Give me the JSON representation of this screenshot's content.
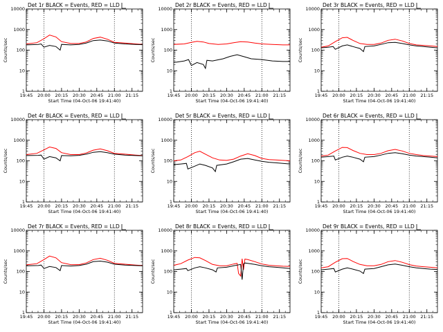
{
  "chart_data": [
    {
      "type": "line",
      "title": "Det 1r BLACK = Events, RED = LLD",
      "xlabel": "Start Time (04-Oct-06 19:41:40)",
      "ylabel": "Counts/sec",
      "yscale": "log",
      "ylim": [
        1,
        10000
      ],
      "yticks": [
        "1",
        "10",
        "100",
        "1000",
        "10000"
      ],
      "xlim": [
        19.75,
        21.4
      ],
      "xticks": [
        "19:45",
        "20:00",
        "20:15",
        "20:30",
        "20:45",
        "21:00",
        "21:15"
      ],
      "vlines": [
        20.0,
        21.0
      ],
      "series": [
        {
          "name": "RED",
          "color": "#ff0000",
          "x": [
            19.75,
            19.9,
            20.0,
            20.08,
            20.17,
            20.25,
            20.38,
            20.5,
            20.6,
            20.7,
            20.8,
            20.9,
            21.0,
            21.15,
            21.3,
            21.4
          ],
          "y": [
            200,
            230,
            360,
            540,
            440,
            260,
            210,
            210,
            250,
            370,
            430,
            340,
            240,
            220,
            200,
            190
          ]
        },
        {
          "name": "BLACK",
          "color": "#000000",
          "x": [
            19.75,
            19.92,
            19.96,
            20.0,
            20.08,
            20.17,
            20.23,
            20.25,
            20.38,
            20.5,
            20.6,
            20.7,
            20.8,
            20.9,
            21.0,
            21.15,
            21.3,
            21.4
          ],
          "y": [
            180,
            190,
            200,
            140,
            170,
            150,
            100,
            190,
            180,
            190,
            220,
            290,
            310,
            280,
            220,
            200,
            190,
            185
          ]
        }
      ]
    },
    {
      "type": "line",
      "title": "Det 2r BLACK = Events, RED = LLD",
      "xlabel": "Start Time (04-Oct-06 19:41:40)",
      "ylabel": "Counts/sec",
      "yscale": "log",
      "ylim": [
        1,
        10000
      ],
      "yticks": [
        "1",
        "10",
        "100",
        "1000",
        "10000"
      ],
      "xlim": [
        19.75,
        21.4
      ],
      "xticks": [
        "19:45",
        "20:00",
        "20:15",
        "20:30",
        "20:45",
        "21:00",
        "21:15"
      ],
      "vlines": [
        20.0,
        21.0
      ],
      "series": [
        {
          "name": "RED",
          "color": "#ff0000",
          "x": [
            19.75,
            19.9,
            20.0,
            20.08,
            20.17,
            20.25,
            20.38,
            20.5,
            20.6,
            20.7,
            20.8,
            20.9,
            21.0,
            21.15,
            21.3,
            21.4
          ],
          "y": [
            190,
            200,
            240,
            270,
            250,
            210,
            190,
            200,
            230,
            260,
            250,
            220,
            200,
            190,
            180,
            180
          ]
        },
        {
          "name": "BLACK",
          "color": "#000000",
          "x": [
            19.75,
            19.9,
            19.96,
            20.0,
            20.08,
            20.17,
            20.2,
            20.22,
            20.3,
            20.45,
            20.55,
            20.65,
            20.75,
            20.85,
            21.0,
            21.15,
            21.3,
            21.4
          ],
          "y": [
            25,
            30,
            35,
            18,
            25,
            20,
            13,
            32,
            30,
            38,
            50,
            60,
            48,
            38,
            35,
            30,
            28,
            28
          ]
        }
      ]
    },
    {
      "type": "line",
      "title": "Det 3r BLACK = Events, RED = LLD",
      "xlabel": "Start Time (04-Oct-06 19:41:40)",
      "ylabel": "Counts/sec",
      "yscale": "log",
      "ylim": [
        1,
        10000
      ],
      "yticks": [
        "1",
        "10",
        "100",
        "1000",
        "10000"
      ],
      "xlim": [
        19.75,
        21.4
      ],
      "xticks": [
        "19:45",
        "20:00",
        "20:15",
        "20:30",
        "20:45",
        "21:00",
        "21:15"
      ],
      "vlines": [
        20.0,
        21.0
      ],
      "series": [
        {
          "name": "RED",
          "color": "#ff0000",
          "x": [
            19.75,
            19.85,
            19.95,
            20.05,
            20.12,
            20.2,
            20.3,
            20.4,
            20.5,
            20.6,
            20.7,
            20.8,
            20.9,
            21.0,
            21.1,
            21.2,
            21.3,
            21.4
          ],
          "y": [
            140,
            160,
            260,
            400,
            420,
            300,
            210,
            190,
            190,
            220,
            300,
            340,
            280,
            210,
            180,
            170,
            160,
            150
          ]
        },
        {
          "name": "BLACK",
          "color": "#000000",
          "x": [
            19.75,
            19.85,
            19.92,
            19.95,
            20.05,
            20.12,
            20.2,
            20.3,
            20.35,
            20.37,
            20.5,
            20.6,
            20.7,
            20.8,
            20.9,
            21.0,
            21.1,
            21.2,
            21.3,
            21.4
          ],
          "y": [
            130,
            140,
            150,
            110,
            160,
            180,
            150,
            120,
            85,
            150,
            160,
            190,
            230,
            240,
            210,
            180,
            160,
            150,
            140,
            130
          ]
        }
      ]
    },
    {
      "type": "line",
      "title": "Det 4r BLACK = Events, RED = LLD",
      "xlabel": "Start Time (04-Oct-06 19:41:40)",
      "ylabel": "Counts/sec",
      "yscale": "log",
      "ylim": [
        1,
        10000
      ],
      "yticks": [
        "1",
        "10",
        "100",
        "1000",
        "10000"
      ],
      "xlim": [
        19.75,
        21.4
      ],
      "xticks": [
        "19:45",
        "20:00",
        "20:15",
        "20:30",
        "20:45",
        "21:00",
        "21:15"
      ],
      "vlines": [
        20.0,
        21.0
      ],
      "series": [
        {
          "name": "RED",
          "color": "#ff0000",
          "x": [
            19.75,
            19.9,
            20.0,
            20.08,
            20.17,
            20.25,
            20.38,
            20.5,
            20.6,
            20.7,
            20.8,
            20.9,
            21.0,
            21.15,
            21.3,
            21.4
          ],
          "y": [
            200,
            230,
            340,
            470,
            400,
            250,
            200,
            200,
            240,
            330,
            380,
            310,
            230,
            210,
            190,
            180
          ]
        },
        {
          "name": "BLACK",
          "color": "#000000",
          "x": [
            19.75,
            19.92,
            19.96,
            20.0,
            20.08,
            20.17,
            20.23,
            20.25,
            20.38,
            20.5,
            20.6,
            20.7,
            20.8,
            20.9,
            21.0,
            21.15,
            21.3,
            21.4
          ],
          "y": [
            180,
            185,
            190,
            120,
            160,
            140,
            100,
            180,
            175,
            185,
            210,
            260,
            280,
            250,
            210,
            190,
            180,
            175
          ]
        }
      ]
    },
    {
      "type": "line",
      "title": "Det 5r BLACK = Events, RED = LLD",
      "xlabel": "Start Time (04-Oct-06 19:41:40)",
      "ylabel": "Counts/sec",
      "yscale": "log",
      "ylim": [
        1,
        10000
      ],
      "yticks": [
        "1",
        "10",
        "100",
        "1000",
        "10000"
      ],
      "xlim": [
        19.75,
        21.4
      ],
      "xticks": [
        "19:45",
        "20:00",
        "20:15",
        "20:30",
        "20:45",
        "21:00",
        "21:15"
      ],
      "vlines": [
        20.0,
        21.0
      ],
      "series": [
        {
          "name": "RED",
          "color": "#ff0000",
          "x": [
            19.75,
            19.85,
            19.95,
            20.05,
            20.12,
            20.2,
            20.3,
            20.4,
            20.5,
            20.6,
            20.7,
            20.8,
            20.9,
            21.0,
            21.1,
            21.2,
            21.3,
            21.4
          ],
          "y": [
            100,
            110,
            160,
            250,
            290,
            210,
            140,
            110,
            105,
            120,
            170,
            220,
            180,
            130,
            115,
            110,
            105,
            100
          ]
        },
        {
          "name": "BLACK",
          "color": "#000000",
          "x": [
            19.75,
            19.85,
            19.93,
            19.95,
            20.05,
            20.12,
            20.2,
            20.3,
            20.34,
            20.36,
            20.5,
            20.6,
            20.7,
            20.8,
            20.9,
            21.0,
            21.1,
            21.2,
            21.3,
            21.4
          ],
          "y": [
            65,
            70,
            75,
            40,
            55,
            70,
            60,
            45,
            30,
            60,
            70,
            90,
            120,
            130,
            110,
            95,
            85,
            80,
            75,
            70
          ]
        }
      ]
    },
    {
      "type": "line",
      "title": "Det 6r BLACK = Events, RED = LLD",
      "xlabel": "Start Time (04-Oct-06 19:41:40)",
      "ylabel": "Counts/sec",
      "yscale": "log",
      "ylim": [
        1,
        10000
      ],
      "yticks": [
        "1",
        "10",
        "100",
        "1000",
        "10000"
      ],
      "xlim": [
        19.75,
        21.4
      ],
      "xticks": [
        "19:45",
        "20:00",
        "20:15",
        "20:30",
        "20:45",
        "21:00",
        "21:15"
      ],
      "vlines": [
        20.0,
        21.0
      ],
      "series": [
        {
          "name": "RED",
          "color": "#ff0000",
          "x": [
            19.75,
            19.85,
            19.95,
            20.05,
            20.12,
            20.2,
            20.3,
            20.4,
            20.5,
            20.6,
            20.7,
            20.8,
            20.9,
            21.0,
            21.1,
            21.2,
            21.3,
            21.4
          ],
          "y": [
            170,
            190,
            300,
            450,
            440,
            320,
            230,
            200,
            200,
            230,
            310,
            360,
            300,
            230,
            200,
            180,
            170,
            160
          ]
        },
        {
          "name": "BLACK",
          "color": "#000000",
          "x": [
            19.75,
            19.85,
            19.93,
            19.95,
            20.05,
            20.12,
            20.2,
            20.3,
            20.35,
            20.37,
            20.5,
            20.6,
            20.7,
            20.8,
            20.9,
            21.0,
            21.1,
            21.2,
            21.3,
            21.4
          ],
          "y": [
            150,
            160,
            170,
            110,
            150,
            170,
            150,
            120,
            90,
            150,
            160,
            190,
            230,
            250,
            220,
            190,
            170,
            160,
            150,
            140
          ]
        }
      ]
    },
    {
      "type": "line",
      "title": "Det 7r BLACK = Events, RED = LLD",
      "xlabel": "Start Time (04-Oct-06 19:41:40)",
      "ylabel": "Counts/sec",
      "yscale": "log",
      "ylim": [
        1,
        10000
      ],
      "yticks": [
        "1",
        "10",
        "100",
        "1000",
        "10000"
      ],
      "xlim": [
        19.75,
        21.4
      ],
      "xticks": [
        "19:45",
        "20:00",
        "20:15",
        "20:30",
        "20:45",
        "21:00",
        "21:15"
      ],
      "vlines": [
        20.0,
        21.0
      ],
      "series": [
        {
          "name": "RED",
          "color": "#ff0000",
          "x": [
            19.75,
            19.9,
            20.0,
            20.08,
            20.17,
            20.25,
            20.38,
            20.5,
            20.6,
            20.7,
            20.8,
            20.9,
            21.0,
            21.15,
            21.3,
            21.4
          ],
          "y": [
            210,
            240,
            380,
            560,
            460,
            270,
            215,
            215,
            260,
            380,
            440,
            350,
            250,
            225,
            205,
            195
          ]
        },
        {
          "name": "BLACK",
          "color": "#000000",
          "x": [
            19.75,
            19.92,
            19.96,
            20.0,
            20.08,
            20.17,
            20.23,
            20.25,
            20.38,
            20.5,
            20.6,
            20.7,
            20.8,
            20.9,
            21.0,
            21.15,
            21.3,
            21.4
          ],
          "y": [
            190,
            195,
            205,
            140,
            175,
            155,
            110,
            195,
            185,
            195,
            225,
            300,
            320,
            285,
            225,
            205,
            195,
            190
          ]
        }
      ]
    },
    {
      "type": "line",
      "title": "Det 8r BLACK = Events, RED = LLD",
      "xlabel": "Start Time (04-Oct-06 19:41:40)",
      "ylabel": "Counts/sec",
      "yscale": "log",
      "ylim": [
        1,
        10000
      ],
      "yticks": [
        "1",
        "10",
        "100",
        "1000",
        "10000"
      ],
      "xlim": [
        19.75,
        21.4
      ],
      "xticks": [
        "19:45",
        "20:00",
        "20:15",
        "20:30",
        "20:45",
        "21:00",
        "21:15"
      ],
      "vlines": [
        20.0,
        21.0
      ],
      "series": [
        {
          "name": "RED",
          "color": "#ff0000",
          "x": [
            19.75,
            19.85,
            19.95,
            20.05,
            20.12,
            20.2,
            20.3,
            20.4,
            20.5,
            20.6,
            20.65,
            20.67,
            20.7,
            20.72,
            20.74,
            20.76,
            20.8,
            20.9,
            21.0,
            21.1,
            21.2,
            21.3,
            21.4
          ],
          "y": [
            200,
            240,
            360,
            480,
            460,
            340,
            220,
            190,
            190,
            230,
            250,
            80,
            60,
            420,
            120,
            400,
            380,
            300,
            230,
            200,
            190,
            180,
            175
          ]
        },
        {
          "name": "BLACK",
          "color": "#000000",
          "x": [
            19.75,
            19.85,
            19.93,
            19.95,
            20.05,
            20.12,
            20.2,
            20.3,
            20.35,
            20.37,
            20.5,
            20.6,
            20.7,
            20.72,
            20.74,
            20.76,
            20.8,
            20.9,
            21.0,
            21.1,
            21.2,
            21.3,
            21.4
          ],
          "y": [
            120,
            130,
            140,
            110,
            150,
            170,
            150,
            120,
            95,
            150,
            160,
            190,
            220,
            40,
            230,
            260,
            250,
            220,
            190,
            170,
            160,
            150,
            140
          ]
        }
      ]
    },
    {
      "type": "line",
      "title": "Det 9r BLACK = Events, RED = LLD",
      "xlabel": "Start Time (04-Oct-06 19:41:40)",
      "ylabel": "Counts/sec",
      "yscale": "log",
      "ylim": [
        1,
        10000
      ],
      "yticks": [
        "1",
        "10",
        "100",
        "1000",
        "10000"
      ],
      "xlim": [
        19.75,
        21.4
      ],
      "xticks": [
        "19:45",
        "20:00",
        "20:15",
        "20:30",
        "20:45",
        "21:00",
        "21:15"
      ],
      "vlines": [
        20.0,
        21.0
      ],
      "series": [
        {
          "name": "RED",
          "color": "#ff0000",
          "x": [
            19.75,
            19.85,
            19.95,
            20.05,
            20.12,
            20.2,
            20.3,
            20.4,
            20.5,
            20.6,
            20.7,
            20.8,
            20.9,
            21.0,
            21.1,
            21.2,
            21.3,
            21.4
          ],
          "y": [
            150,
            170,
            280,
            420,
            430,
            310,
            220,
            190,
            190,
            220,
            300,
            340,
            280,
            215,
            185,
            170,
            160,
            150
          ]
        },
        {
          "name": "BLACK",
          "color": "#000000",
          "x": [
            19.75,
            19.85,
            19.93,
            19.95,
            20.05,
            20.12,
            20.2,
            20.3,
            20.35,
            20.37,
            20.5,
            20.6,
            20.7,
            20.8,
            20.9,
            21.0,
            21.1,
            21.2,
            21.3,
            21.4
          ],
          "y": [
            120,
            130,
            140,
            95,
            130,
            150,
            130,
            105,
            80,
            130,
            140,
            170,
            210,
            230,
            200,
            170,
            150,
            140,
            130,
            125
          ]
        }
      ]
    }
  ]
}
